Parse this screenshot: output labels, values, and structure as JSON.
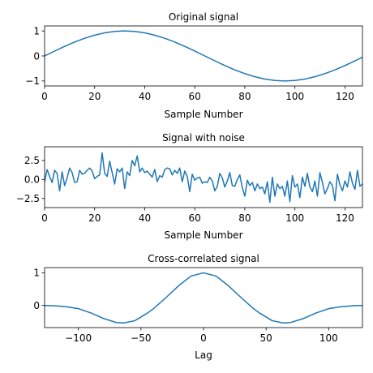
{
  "chart_data": [
    {
      "type": "line",
      "title": "Original signal",
      "xlabel": "Sample Number",
      "ylabel": "",
      "xlim": [
        0,
        127
      ],
      "ylim": [
        -1.2,
        1.2
      ],
      "xticks": [
        0,
        20,
        40,
        60,
        80,
        100,
        120
      ],
      "yticks": [
        -1,
        0,
        1
      ],
      "xtick_labels": [
        "0",
        "20",
        "40",
        "60",
        "80",
        "100",
        "120"
      ],
      "ytick_labels": [
        "−1",
        "0",
        "1"
      ],
      "grid": false,
      "color": "#1f77b4",
      "series": [
        {
          "x": [
            0,
            4,
            8,
            12,
            16,
            20,
            24,
            28,
            32,
            36,
            40,
            44,
            48,
            52,
            56,
            60,
            64,
            68,
            72,
            76,
            80,
            84,
            88,
            92,
            96,
            100,
            104,
            108,
            112,
            116,
            120,
            124,
            127
          ],
          "values": [
            0.0,
            0.195,
            0.383,
            0.556,
            0.707,
            0.831,
            0.924,
            0.981,
            1.0,
            0.981,
            0.924,
            0.831,
            0.707,
            0.556,
            0.383,
            0.195,
            0.0,
            -0.195,
            -0.383,
            -0.556,
            -0.707,
            -0.831,
            -0.924,
            -0.981,
            -1.0,
            -0.981,
            -0.924,
            -0.831,
            -0.707,
            -0.556,
            -0.383,
            -0.195,
            -0.049
          ]
        }
      ]
    },
    {
      "type": "line",
      "title": "Signal with noise",
      "xlabel": "Sample Number",
      "ylabel": "",
      "xlim": [
        0,
        127
      ],
      "ylim": [
        -3.7,
        4.3
      ],
      "xticks": [
        0,
        20,
        40,
        60,
        80,
        100,
        120
      ],
      "yticks": [
        -2.5,
        0.0,
        2.5
      ],
      "xtick_labels": [
        "0",
        "20",
        "40",
        "60",
        "80",
        "100",
        "120"
      ],
      "ytick_labels": [
        "−2.5",
        "0.0",
        "2.5"
      ],
      "grid": false,
      "color": "#1f77b4",
      "series": [
        {
          "x": [
            0,
            1,
            2,
            3,
            4,
            5,
            6,
            7,
            8,
            9,
            10,
            11,
            12,
            13,
            14,
            15,
            16,
            17,
            18,
            19,
            20,
            21,
            22,
            23,
            24,
            25,
            26,
            27,
            28,
            29,
            30,
            31,
            32,
            33,
            34,
            35,
            36,
            37,
            38,
            39,
            40,
            41,
            42,
            43,
            44,
            45,
            46,
            47,
            48,
            49,
            50,
            51,
            52,
            53,
            54,
            55,
            56,
            57,
            58,
            59,
            60,
            61,
            62,
            63,
            64,
            65,
            66,
            67,
            68,
            69,
            70,
            71,
            72,
            73,
            74,
            75,
            76,
            77,
            78,
            79,
            80,
            81,
            82,
            83,
            84,
            85,
            86,
            87,
            88,
            89,
            90,
            91,
            92,
            93,
            94,
            95,
            96,
            97,
            98,
            99,
            100,
            101,
            102,
            103,
            104,
            105,
            106,
            107,
            108,
            109,
            110,
            111,
            112,
            113,
            114,
            115,
            116,
            117,
            118,
            119,
            120,
            121,
            122,
            123,
            124,
            125,
            126,
            127
          ],
          "values": [
            -0.3,
            1.3,
            0.4,
            -0.4,
            1.2,
            0.8,
            -1.5,
            1.0,
            -0.8,
            0.2,
            1.5,
            0.9,
            -0.4,
            -0.3,
            1.2,
            0.7,
            0.8,
            1.2,
            1.5,
            1.1,
            0.1,
            0.4,
            0.6,
            3.5,
            0.8,
            0.4,
            2.4,
            0.9,
            -0.6,
            1.4,
            1.0,
            1.5,
            -1.2,
            1.0,
            0.5,
            2.5,
            1.8,
            3.1,
            1.0,
            1.5,
            0.9,
            1.1,
            0.7,
            0.3,
            1.3,
            -0.3,
            0.5,
            0.3,
            1.3,
            1.5,
            1.4,
            0.6,
            1.2,
            0.8,
            1.5,
            -0.3,
            1.1,
            0.4,
            -1.6,
            0.7,
            -0.1,
            0.2,
            0.3,
            -0.5,
            -0.3,
            -0.4,
            0.3,
            -0.2,
            -1.5,
            -0.9,
            0.8,
            0.2,
            -1.0,
            -0.2,
            0.9,
            -0.8,
            -0.9,
            0.0,
            0.6,
            -1.1,
            -2.2,
            -0.1,
            -0.8,
            -0.4,
            -1.5,
            -0.6,
            -1.2,
            -1.0,
            -1.9,
            -0.3,
            -3.0,
            0.3,
            -2.2,
            -0.6,
            -1.2,
            -0.9,
            -2.2,
            -0.2,
            -2.9,
            0.5,
            -1.0,
            -0.6,
            -2.4,
            0.3,
            -0.9,
            0.8,
            -1.0,
            -1.6,
            -0.2,
            -2.2,
            0.9,
            -0.4,
            -1.9,
            -1.2,
            -0.3,
            -0.8,
            -2.8,
            0.7,
            -0.7,
            -1.5,
            -0.2,
            -1.0,
            1.0,
            -0.5,
            -1.3,
            1.2,
            -0.9,
            -0.6
          ]
        }
      ]
    },
    {
      "type": "line",
      "title": "Cross-correlated signal",
      "xlabel": "Lag",
      "ylabel": "",
      "xlim": [
        -127,
        127
      ],
      "ylim": [
        -0.68,
        1.16
      ],
      "xticks": [
        -100,
        -50,
        0,
        50,
        100
      ],
      "yticks": [
        0,
        1
      ],
      "xtick_labels": [
        "−100",
        "−50",
        "0",
        "50",
        "100"
      ],
      "ytick_labels": [
        "0",
        "1"
      ],
      "grid": false,
      "color": "#1f77b4",
      "series": [
        {
          "x": [
            -127,
            -120,
            -110,
            -100,
            -90,
            -80,
            -70,
            -64,
            -55,
            -45,
            -40,
            -30,
            -20,
            -10,
            0,
            10,
            20,
            30,
            40,
            45,
            55,
            64,
            70,
            80,
            90,
            100,
            110,
            120,
            127
          ],
          "values": [
            -0.002,
            -0.01,
            -0.04,
            -0.1,
            -0.23,
            -0.4,
            -0.52,
            -0.54,
            -0.47,
            -0.24,
            -0.1,
            0.24,
            0.6,
            0.9,
            1.0,
            0.9,
            0.6,
            0.24,
            -0.1,
            -0.24,
            -0.47,
            -0.54,
            -0.52,
            -0.4,
            -0.23,
            -0.1,
            -0.04,
            -0.01,
            -0.002
          ]
        }
      ]
    }
  ]
}
